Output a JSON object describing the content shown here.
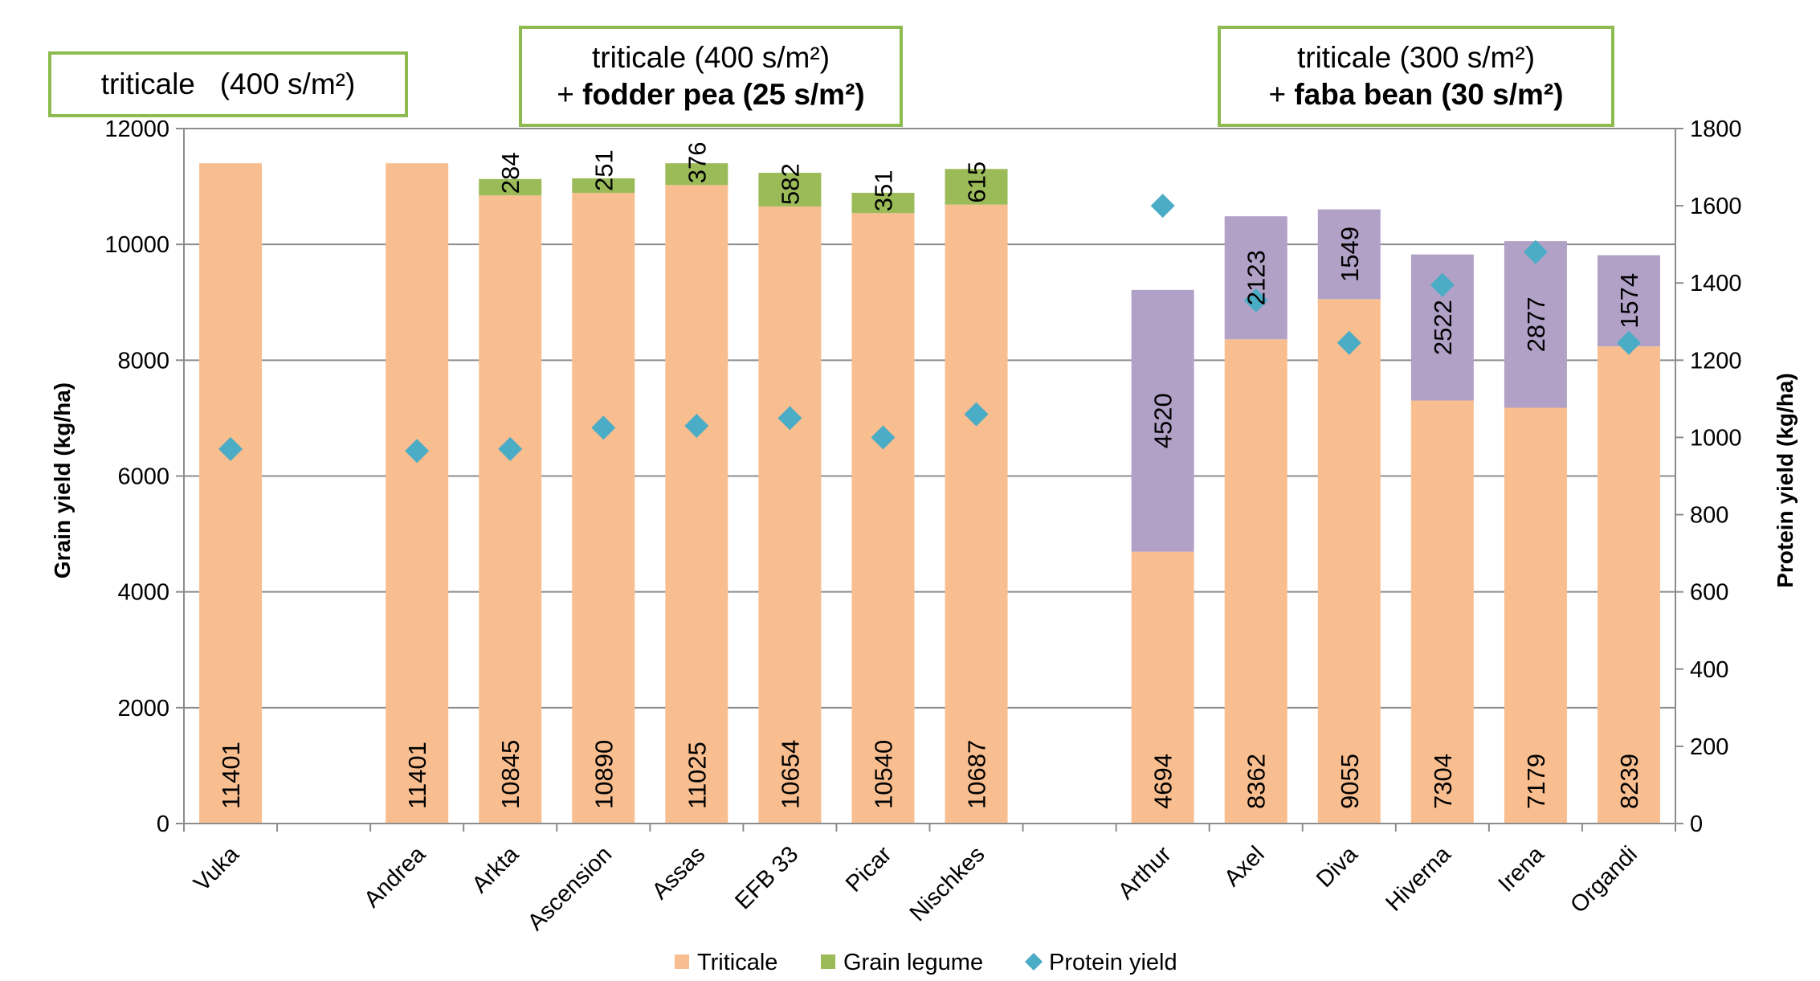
{
  "chart_data": {
    "type": "bar",
    "stacked": true,
    "categories": [
      "Vuka",
      "",
      "Andrea",
      "Arkta",
      "Ascension",
      "Assas",
      "EFB 33",
      "Picar",
      "Nischkes",
      "",
      "Arthur",
      "Axel",
      "Diva",
      "Hiverna",
      "Irena",
      "Organdi"
    ],
    "ylabel": "Grain yield (kg/ha)",
    "y2label": "Protein yield (kg/ha)",
    "ylim": [
      0,
      12000
    ],
    "yticks": [
      0,
      2000,
      4000,
      6000,
      8000,
      10000,
      12000
    ],
    "y2lim": [
      0,
      1800
    ],
    "y2ticks": [
      0,
      200,
      400,
      600,
      800,
      1000,
      1200,
      1400,
      1600,
      1800
    ],
    "grid": true,
    "legend_position": "bottom",
    "series": [
      {
        "name": "Triticale",
        "kind": "bar",
        "axis": "left",
        "color": "#f9be8f",
        "values": [
          11401,
          null,
          11401,
          10845,
          10890,
          11025,
          10654,
          10540,
          10687,
          null,
          4694,
          8362,
          9055,
          7304,
          7179,
          8239
        ],
        "labels": [
          "11401",
          "",
          "11401",
          "10845",
          "10890",
          "11025",
          "10654",
          "10540",
          "10687",
          "",
          "4694",
          "8362",
          "9055",
          "7304",
          "7179",
          "8239"
        ]
      },
      {
        "name": "Grain legume",
        "kind": "bar",
        "axis": "left",
        "color": "#9bbb59",
        "color_faba": "#b2a1c7",
        "values": [
          null,
          null,
          null,
          284,
          251,
          376,
          582,
          351,
          615,
          null,
          4520,
          2123,
          1549,
          2522,
          2877,
          1574
        ],
        "labels": [
          "",
          "",
          "",
          "284",
          "251",
          "376",
          "582",
          "351",
          "615",
          "",
          "4520",
          "2123",
          "1549",
          "2522",
          "2877",
          "1574"
        ]
      },
      {
        "name": "Protein yield",
        "kind": "scatter",
        "marker": "diamond",
        "axis": "right",
        "color": "#4bacc6",
        "values": [
          970,
          null,
          965,
          970,
          1025,
          1030,
          1050,
          1000,
          1060,
          null,
          1600,
          1355,
          1245,
          1395,
          1480,
          1245
        ]
      }
    ],
    "groups": [
      {
        "line1": "triticale   (400 s/m²)",
        "line2_prefix": "",
        "line2_bold": ""
      },
      {
        "line1": "triticale (400 s/m²)",
        "line2_prefix": "+ ",
        "line2_bold": "fodder pea (25 s/m²)"
      },
      {
        "line1": "triticale (300 s/m²)",
        "line2_prefix": "+ ",
        "line2_bold": "faba bean (30 s/m²)"
      }
    ]
  }
}
